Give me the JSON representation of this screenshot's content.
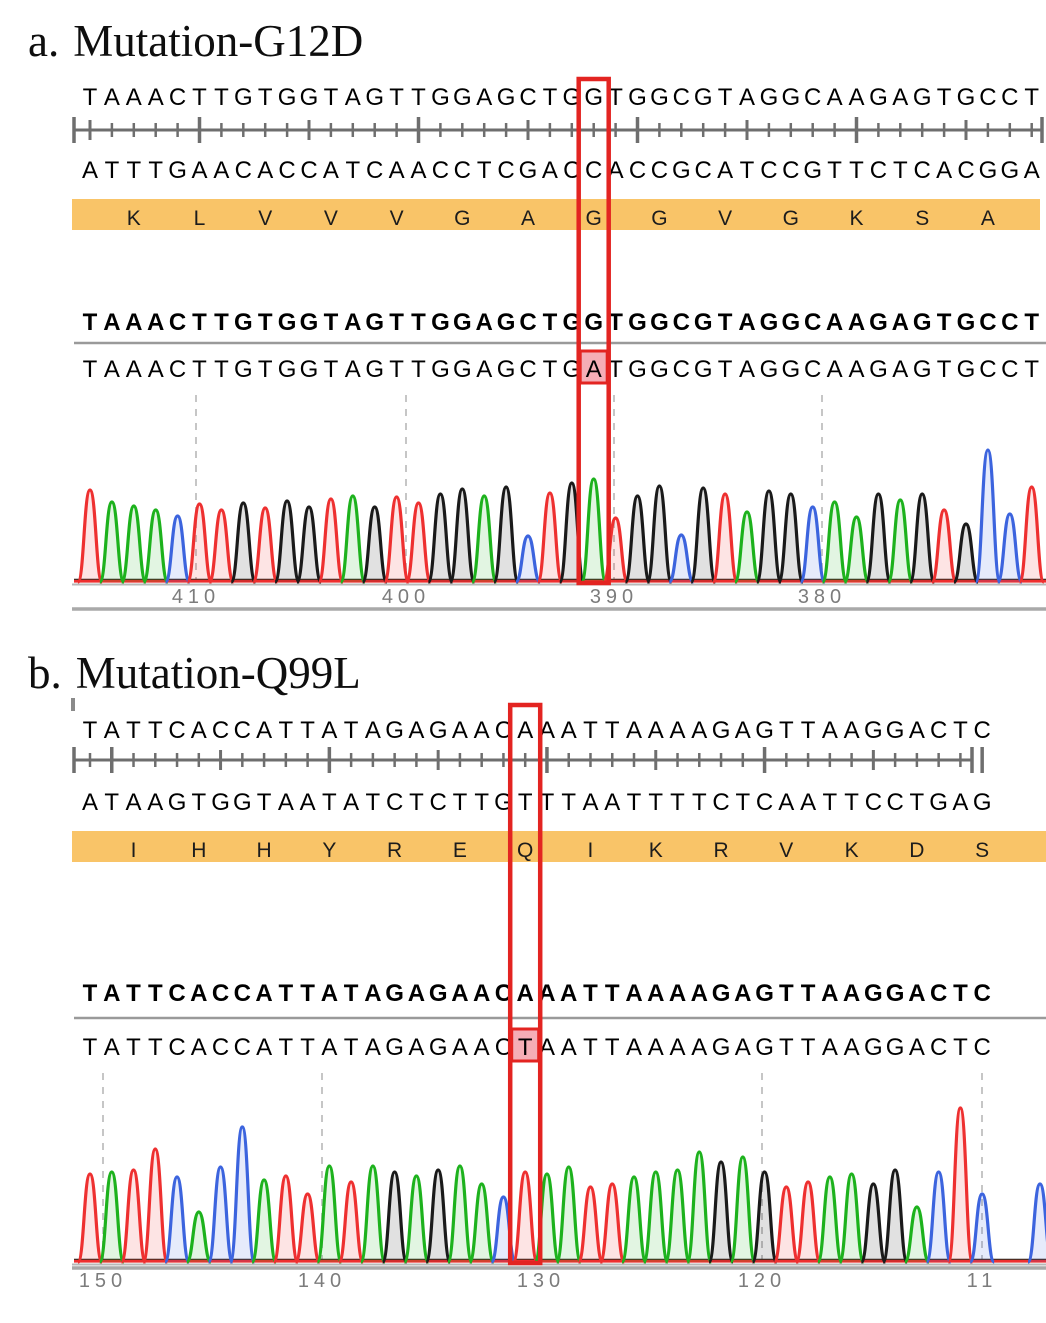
{
  "chart_data": [
    {
      "type": "area",
      "panel_label": "a.",
      "title": "Mutation-G12D",
      "top_strand": "TAAACTTGTGGTAGTTGGAGCTGGTGGCGTAGGCAAGAGTGCCT",
      "bottom_strand": "ATTTGAACACCATCAACCTCGACCACCGCATCCGTTCTCACGGA",
      "amino_acids": [
        "K",
        "L",
        "V",
        "V",
        "V",
        "G",
        "A",
        "G",
        "G",
        "V",
        "G",
        "K",
        "S",
        "A"
      ],
      "highlighted_aa_index": 7,
      "reference_seq": "TAAACTTGTGGTAGTTGGAGCTGGTGGCGTAGGCAAGAGTGCCT",
      "sample_seq": "TAAACTTGTGGTAGTTGGAGCTGATGGCGTAGGCAAGAGTGCCT",
      "mutation": {
        "index": 23,
        "reference_base": "G",
        "sample_base": "A"
      },
      "axis": {
        "tick_labels": [
          "410",
          "400",
          "390",
          "380"
        ]
      },
      "trace_heights": [
        92,
        80,
        76,
        72,
        66,
        78,
        72,
        79,
        74,
        81,
        75,
        83,
        86,
        75,
        85,
        79,
        88,
        93,
        86,
        95,
        46,
        89,
        99,
        103,
        64,
        86,
        96,
        47,
        94,
        88,
        70,
        91,
        88,
        75,
        80,
        65,
        88,
        82,
        88,
        72,
        58,
        132,
        68,
        95
      ]
    },
    {
      "type": "area",
      "panel_label": "b.",
      "title": "Mutation-Q99L",
      "top_strand": "TATTCACCATTATAGAGAACAAATTAAAAGAGTTAAGGACTC",
      "bottom_strand": "ATAAGTGGTAATATCTCTTGTTTAATTTTCTCAATTCCTGAG",
      "amino_acids": [
        "I",
        "H",
        "H",
        "Y",
        "R",
        "E",
        "Q",
        "I",
        "K",
        "R",
        "V",
        "K",
        "D",
        "S"
      ],
      "highlighted_aa_index": 6,
      "reference_seq": "TATTCACCATTATAGAGAACAAATTAAAAGAGTTAAGGACTC",
      "sample_seq": "TATTCACCATTATAGAGAACTAATTAAAAGAGTTAAGGACTC",
      "mutation": {
        "index": 20,
        "reference_base": "A",
        "sample_base": "T"
      },
      "axis": {
        "tick_labels": [
          "150",
          "140",
          "130",
          "120",
          "11"
        ]
      },
      "trace_heights": [
        88,
        90,
        92,
        113,
        85,
        50,
        95,
        135,
        82,
        86,
        68,
        96,
        80,
        96,
        90,
        86,
        92,
        96,
        78,
        65,
        90,
        88,
        95,
        75,
        78,
        85,
        90,
        92,
        110,
        100,
        105,
        90,
        75,
        80,
        85,
        88,
        78,
        92,
        55,
        90,
        154,
        68
      ]
    }
  ],
  "colors": {
    "base_A": "#1db21d",
    "base_C": "#3c64de",
    "base_G": "#1a1a1a",
    "base_T": "#ee3030",
    "aa_band": "#f9c468",
    "highlight_box": "#e32421",
    "highlight_fill": "#f5aeb6",
    "ruler": "#6e6e6e",
    "grid": "#c6c6c6",
    "divider": "#9a9a9a",
    "axis_rule": "#a9a9a9",
    "axis_label": "#7c7c7c"
  }
}
